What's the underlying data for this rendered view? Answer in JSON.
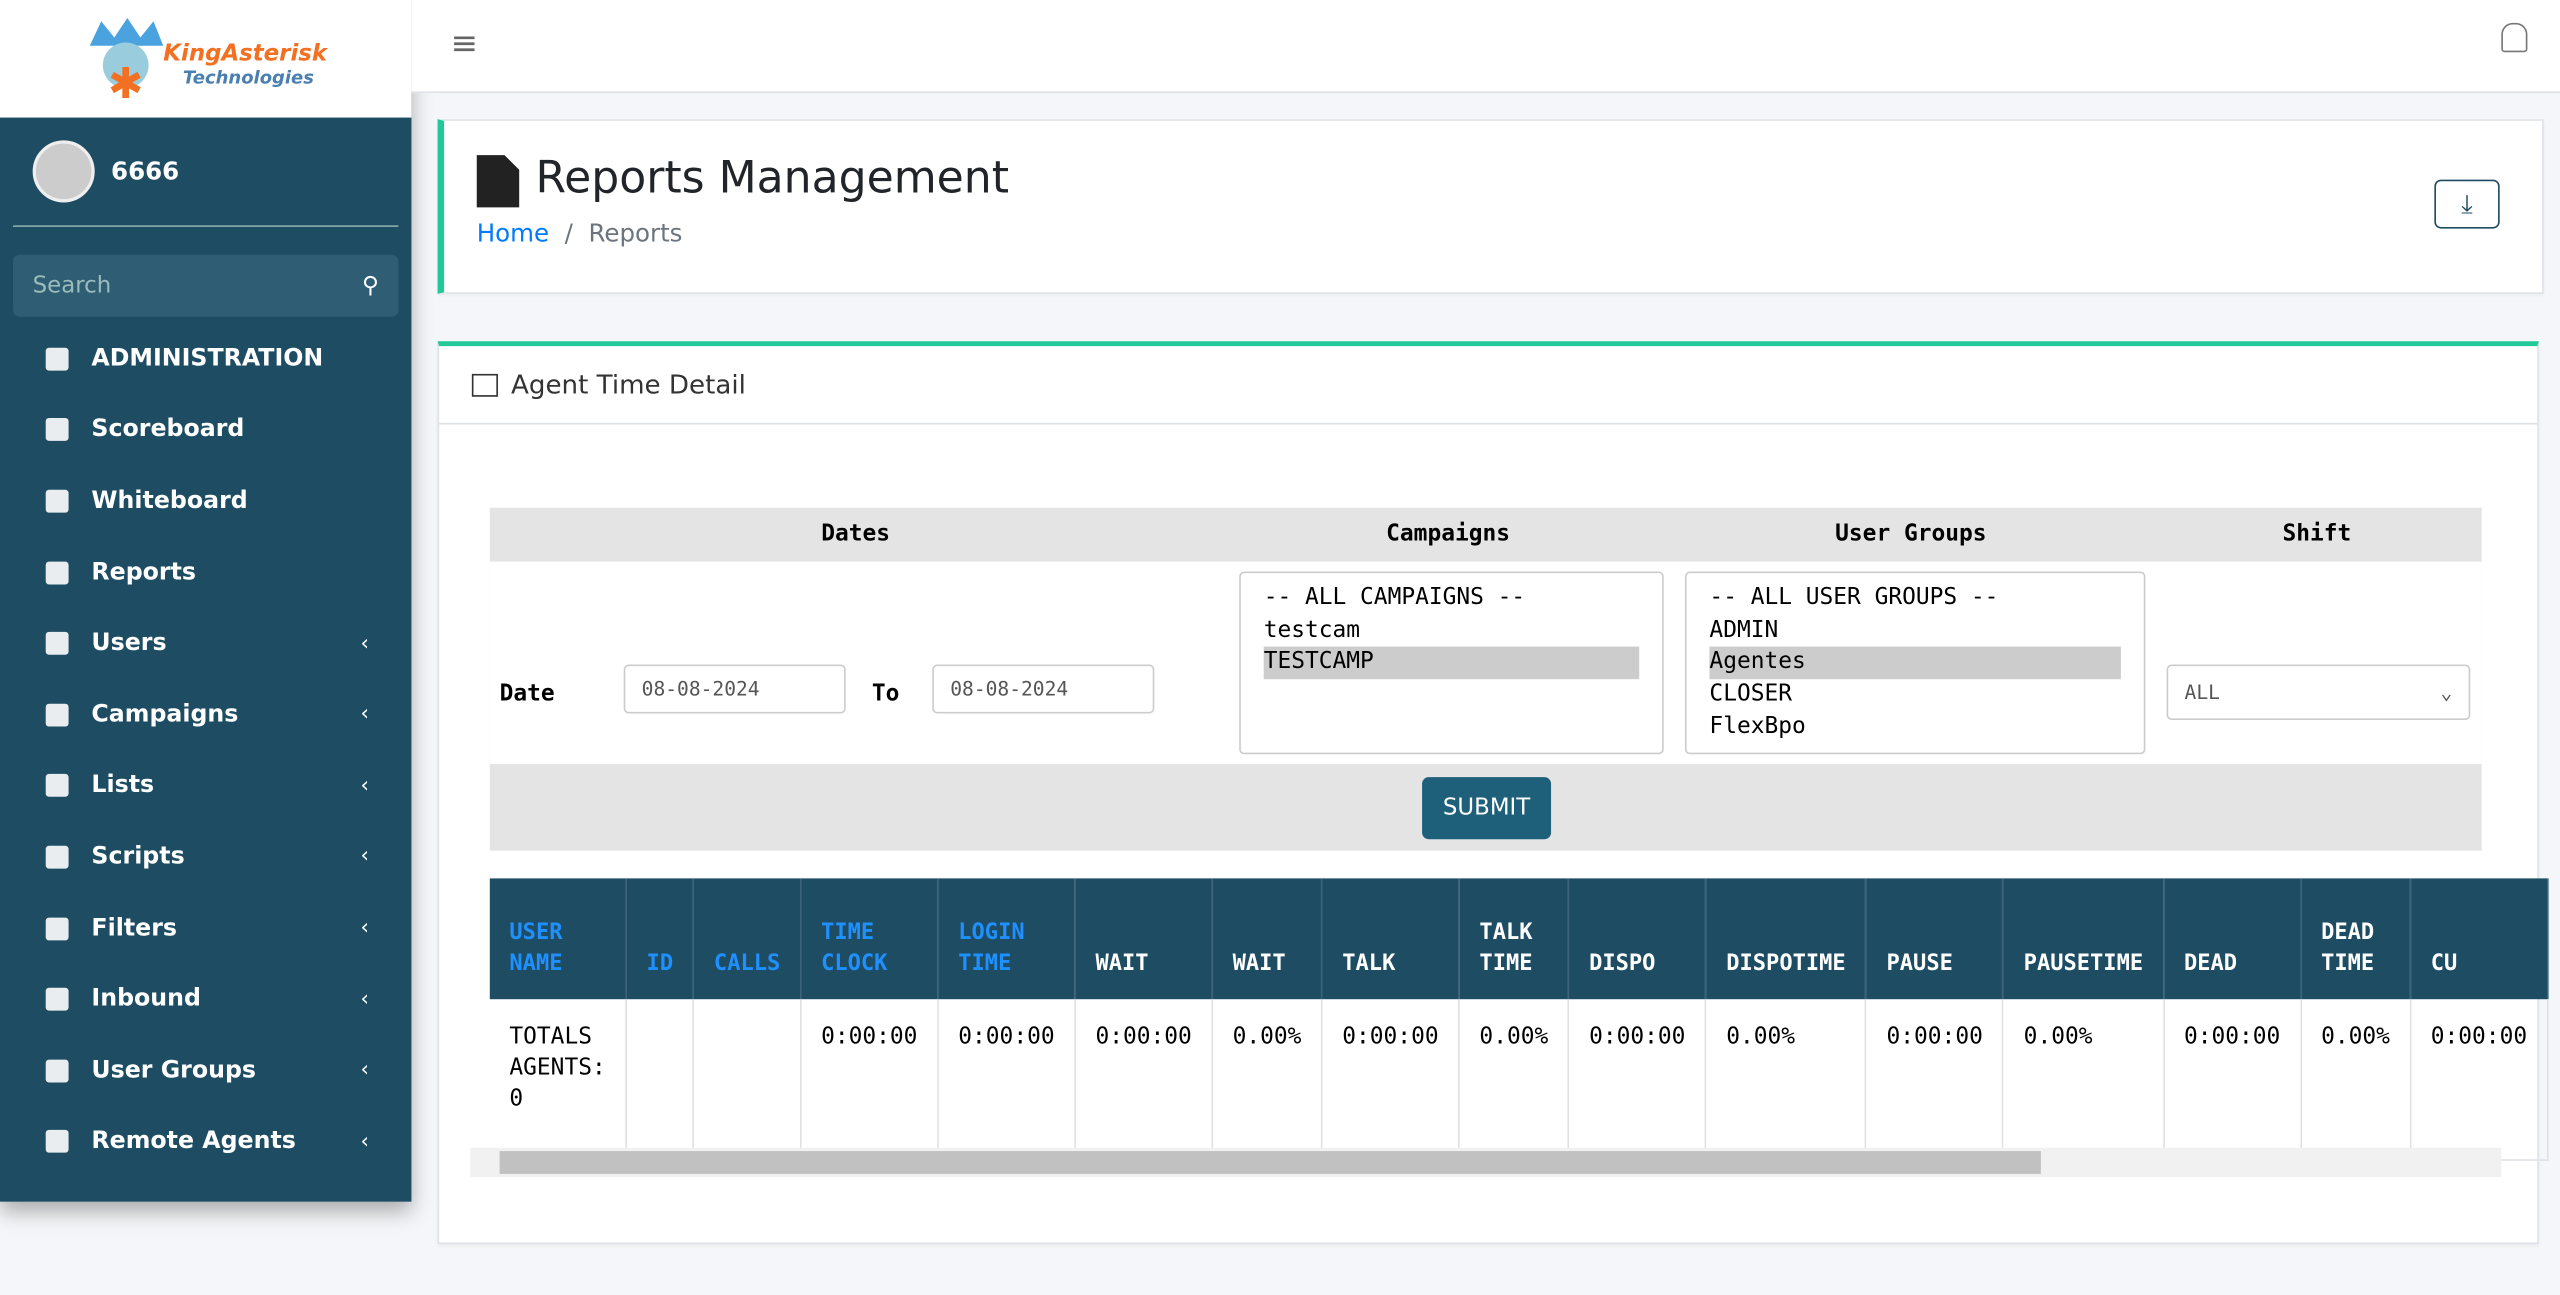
{
  "brand": {
    "name": "KingAsterisk",
    "sub": "Technologies"
  },
  "user": "6666",
  "search_placeholder": "Search",
  "nav": [
    "ADMINISTRATION",
    "Scoreboard",
    "Whiteboard",
    "Reports",
    "Users",
    "Campaigns",
    "Lists",
    "Scripts",
    "Filters",
    "Inbound",
    "User Groups",
    "Remote Agents"
  ],
  "page": {
    "title": "Reports Management",
    "breadcrumb": [
      "Home",
      "Reports"
    ]
  },
  "card": {
    "title": "Agent Time Detail"
  },
  "filters": {
    "headers": [
      "Dates",
      "Campaigns",
      "User Groups",
      "Shift"
    ],
    "date_label": "Date",
    "date_from": "08-08-2024",
    "to_label": "To",
    "date_to": "08-08-2024",
    "campaigns": [
      "-- ALL CAMPAIGNS --",
      "testcam",
      "TESTCAMP"
    ],
    "user_groups": [
      "-- ALL USER GROUPS --",
      "ADMIN",
      "Agentes",
      "CLOSER",
      "FlexBpo"
    ],
    "shift": "ALL",
    "submit": "SUBMIT"
  },
  "table": {
    "columns": [
      "USER NAME",
      "ID",
      "CALLS",
      "TIME CLOCK",
      "LOGIN TIME",
      "WAIT",
      "WAIT",
      "TALK",
      "TALK TIME",
      "DISPO",
      "DISPOTIME",
      "PAUSE",
      "PAUSETIME",
      "DEAD",
      "DEAD TIME",
      "CU"
    ],
    "rows": [
      [
        "TOTALS AGENTS: 0",
        null,
        null,
        "0:00:00",
        "0:00:00",
        "0:00:00",
        "0.00%",
        "0:00:00",
        "0.00%",
        "0:00:00",
        "0.00%",
        "0:00:00",
        "0.00%",
        "0:00:00",
        "0.00%",
        "0:00:00"
      ]
    ]
  }
}
